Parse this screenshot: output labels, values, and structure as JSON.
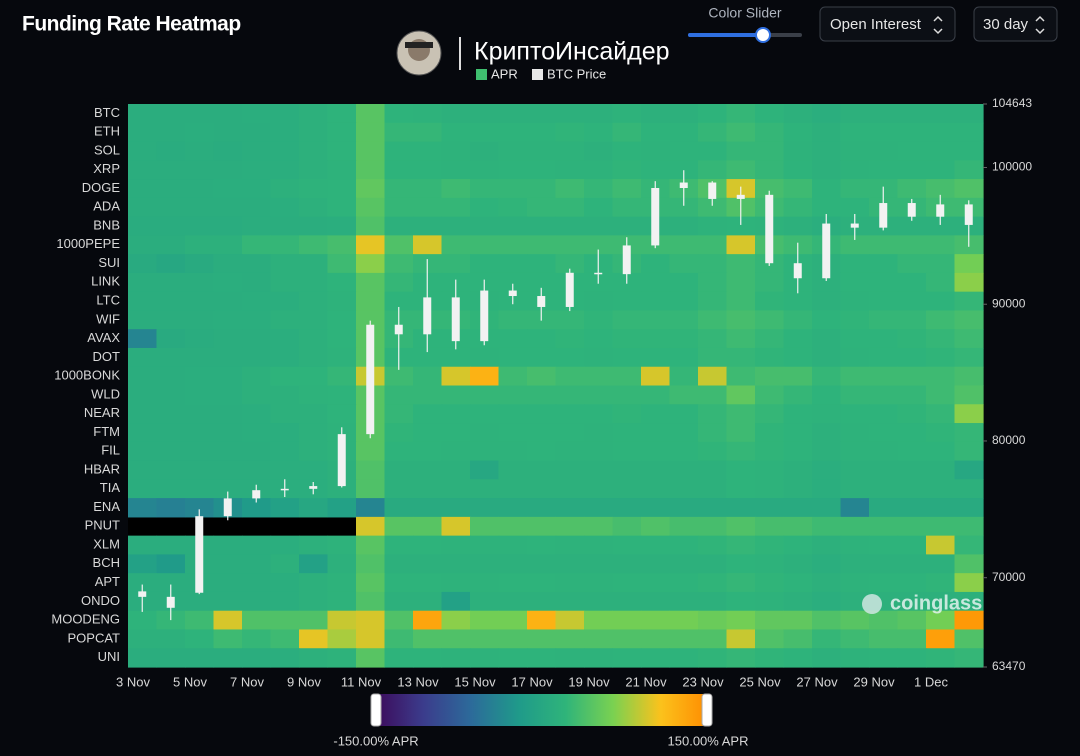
{
  "header": {
    "title": "Funding Rate Heatmap",
    "slider_label": "Color Slider",
    "metric": "Open Interest",
    "range": "30 day",
    "brand": "КриптоИнсайдер",
    "watermark": "coinglass"
  },
  "chart_data": {
    "type": "heatmap",
    "legend": [
      {
        "name": "APR",
        "color": "#3fbf6f"
      },
      {
        "name": "BTC Price",
        "color": "#e8e8e8"
      }
    ],
    "rows": [
      "BTC",
      "ETH",
      "SOL",
      "XRP",
      "DOGE",
      "ADA",
      "BNB",
      "1000PEPE",
      "SUI",
      "LINK",
      "LTC",
      "WIF",
      "AVAX",
      "DOT",
      "1000BONK",
      "WLD",
      "NEAR",
      "FTM",
      "FIL",
      "HBAR",
      "TIA",
      "ENA",
      "PNUT",
      "XLM",
      "BCH",
      "APT",
      "ONDO",
      "MOODENG",
      "POPCAT",
      "UNI"
    ],
    "categories": [
      "3 Nov",
      null,
      "5 Nov",
      null,
      "7 Nov",
      null,
      "9 Nov",
      null,
      "11 Nov",
      null,
      "13 Nov",
      null,
      "15 Nov",
      null,
      "17 Nov",
      null,
      "19 Nov",
      null,
      "21 Nov",
      null,
      "23 Nov",
      null,
      "25 Nov",
      null,
      "27 Nov",
      null,
      "29 Nov",
      null,
      "1 Dec",
      null
    ],
    "values": [
      [
        10,
        10,
        10,
        10,
        12,
        12,
        15,
        20,
        45,
        20,
        18,
        15,
        15,
        15,
        15,
        15,
        15,
        18,
        15,
        15,
        20,
        25,
        20,
        15,
        12,
        15,
        15,
        15,
        15,
        15
      ],
      [
        10,
        10,
        12,
        10,
        10,
        12,
        15,
        20,
        45,
        25,
        25,
        20,
        20,
        20,
        20,
        22,
        20,
        25,
        20,
        20,
        25,
        30,
        25,
        20,
        15,
        20,
        20,
        20,
        20,
        20
      ],
      [
        10,
        8,
        10,
        8,
        10,
        12,
        15,
        20,
        45,
        20,
        20,
        18,
        15,
        18,
        18,
        18,
        15,
        20,
        18,
        20,
        20,
        25,
        25,
        18,
        15,
        18,
        18,
        20,
        20,
        20
      ],
      [
        10,
        10,
        10,
        10,
        12,
        12,
        15,
        18,
        45,
        20,
        20,
        18,
        18,
        20,
        20,
        18,
        18,
        22,
        20,
        20,
        25,
        30,
        25,
        20,
        15,
        18,
        20,
        20,
        20,
        25
      ],
      [
        10,
        10,
        10,
        12,
        12,
        15,
        18,
        20,
        50,
        25,
        25,
        30,
        25,
        25,
        25,
        30,
        25,
        30,
        25,
        30,
        40,
        95,
        35,
        30,
        20,
        25,
        25,
        30,
        35,
        40
      ],
      [
        10,
        10,
        10,
        10,
        10,
        12,
        15,
        20,
        45,
        25,
        25,
        25,
        20,
        22,
        25,
        25,
        20,
        25,
        25,
        25,
        30,
        40,
        30,
        25,
        20,
        20,
        25,
        25,
        30,
        30
      ],
      [
        8,
        8,
        8,
        8,
        10,
        10,
        10,
        12,
        40,
        15,
        15,
        15,
        15,
        15,
        15,
        15,
        15,
        15,
        15,
        15,
        18,
        20,
        18,
        15,
        12,
        15,
        15,
        15,
        15,
        15
      ],
      [
        10,
        10,
        15,
        15,
        25,
        25,
        30,
        35,
        100,
        40,
        95,
        30,
        30,
        30,
        30,
        30,
        30,
        30,
        30,
        30,
        30,
        95,
        35,
        30,
        25,
        30,
        30,
        30,
        30,
        35
      ],
      [
        5,
        0,
        5,
        10,
        10,
        15,
        15,
        30,
        70,
        30,
        25,
        25,
        20,
        20,
        20,
        25,
        20,
        25,
        20,
        25,
        25,
        30,
        25,
        20,
        15,
        20,
        20,
        25,
        25,
        60
      ],
      [
        10,
        10,
        10,
        12,
        10,
        15,
        15,
        20,
        45,
        25,
        20,
        20,
        20,
        20,
        20,
        20,
        20,
        20,
        20,
        20,
        25,
        30,
        25,
        20,
        15,
        20,
        20,
        20,
        25,
        70
      ],
      [
        10,
        10,
        10,
        10,
        12,
        12,
        15,
        18,
        45,
        20,
        20,
        20,
        18,
        20,
        20,
        20,
        18,
        20,
        20,
        20,
        25,
        30,
        22,
        20,
        15,
        18,
        20,
        20,
        20,
        25
      ],
      [
        10,
        10,
        10,
        12,
        12,
        15,
        15,
        20,
        45,
        25,
        25,
        25,
        22,
        25,
        25,
        25,
        22,
        25,
        25,
        25,
        30,
        35,
        30,
        25,
        20,
        22,
        25,
        25,
        30,
        35
      ],
      [
        -40,
        5,
        8,
        10,
        10,
        12,
        15,
        20,
        45,
        25,
        20,
        20,
        20,
        20,
        20,
        22,
        20,
        22,
        22,
        22,
        25,
        30,
        25,
        20,
        15,
        20,
        20,
        22,
        25,
        30
      ],
      [
        10,
        10,
        10,
        10,
        10,
        12,
        15,
        18,
        45,
        20,
        20,
        20,
        18,
        20,
        20,
        20,
        18,
        20,
        20,
        20,
        25,
        25,
        22,
        20,
        15,
        18,
        20,
        20,
        22,
        25
      ],
      [
        10,
        10,
        12,
        12,
        15,
        20,
        20,
        25,
        90,
        30,
        25,
        95,
        120,
        30,
        35,
        30,
        30,
        30,
        95,
        25,
        90,
        30,
        35,
        35,
        25,
        30,
        30,
        30,
        30,
        35
      ],
      [
        10,
        10,
        12,
        12,
        15,
        15,
        18,
        20,
        45,
        25,
        25,
        25,
        25,
        25,
        25,
        25,
        25,
        25,
        25,
        30,
        30,
        50,
        30,
        25,
        20,
        25,
        25,
        25,
        30,
        40
      ],
      [
        10,
        10,
        10,
        10,
        12,
        15,
        15,
        20,
        45,
        25,
        20,
        20,
        20,
        20,
        20,
        20,
        20,
        22,
        20,
        20,
        25,
        30,
        25,
        20,
        18,
        20,
        20,
        22,
        25,
        70
      ],
      [
        10,
        10,
        10,
        10,
        12,
        12,
        15,
        18,
        45,
        22,
        20,
        20,
        18,
        20,
        20,
        20,
        18,
        20,
        20,
        20,
        25,
        30,
        22,
        20,
        15,
        18,
        20,
        20,
        22,
        25
      ],
      [
        10,
        10,
        10,
        10,
        10,
        12,
        15,
        18,
        45,
        20,
        20,
        18,
        18,
        18,
        20,
        18,
        18,
        20,
        20,
        20,
        22,
        25,
        22,
        20,
        15,
        18,
        18,
        20,
        20,
        25
      ],
      [
        10,
        10,
        10,
        10,
        10,
        12,
        12,
        15,
        40,
        15,
        15,
        15,
        0,
        15,
        15,
        15,
        15,
        15,
        15,
        15,
        15,
        20,
        18,
        15,
        12,
        15,
        15,
        15,
        15,
        0
      ],
      [
        10,
        10,
        10,
        10,
        10,
        12,
        12,
        15,
        40,
        15,
        15,
        15,
        15,
        15,
        15,
        15,
        15,
        15,
        15,
        15,
        15,
        20,
        18,
        15,
        12,
        15,
        15,
        15,
        15,
        15
      ],
      [
        -40,
        -45,
        -40,
        -30,
        -20,
        -10,
        0,
        -10,
        -40,
        5,
        5,
        5,
        5,
        5,
        5,
        5,
        5,
        5,
        5,
        5,
        5,
        5,
        5,
        5,
        5,
        -40,
        5,
        5,
        5,
        5
      ],
      [
        null,
        null,
        null,
        null,
        null,
        null,
        null,
        null,
        95,
        45,
        45,
        95,
        40,
        40,
        40,
        40,
        40,
        35,
        40,
        35,
        35,
        40,
        35,
        35,
        30,
        30,
        30,
        30,
        30,
        30
      ],
      [
        10,
        10,
        10,
        10,
        10,
        12,
        15,
        18,
        45,
        20,
        20,
        18,
        18,
        18,
        20,
        18,
        18,
        20,
        20,
        20,
        22,
        25,
        22,
        20,
        15,
        18,
        20,
        20,
        90,
        25
      ],
      [
        -10,
        -20,
        10,
        10,
        10,
        15,
        -10,
        15,
        40,
        15,
        15,
        15,
        15,
        15,
        15,
        15,
        15,
        15,
        15,
        15,
        15,
        20,
        18,
        15,
        12,
        15,
        15,
        15,
        15,
        40
      ],
      [
        10,
        10,
        10,
        10,
        10,
        12,
        15,
        18,
        45,
        20,
        20,
        18,
        18,
        20,
        20,
        18,
        18,
        20,
        20,
        20,
        22,
        25,
        22,
        20,
        15,
        18,
        20,
        20,
        22,
        70
      ],
      [
        10,
        10,
        10,
        10,
        10,
        12,
        15,
        18,
        40,
        15,
        15,
        -10,
        15,
        15,
        15,
        15,
        15,
        15,
        15,
        15,
        15,
        20,
        18,
        15,
        12,
        15,
        15,
        15,
        15,
        15
      ],
      [
        20,
        25,
        30,
        95,
        40,
        40,
        40,
        90,
        95,
        40,
        130,
        70,
        60,
        60,
        120,
        90,
        60,
        60,
        60,
        60,
        55,
        60,
        50,
        50,
        40,
        45,
        40,
        45,
        60,
        140
      ],
      [
        15,
        15,
        20,
        30,
        25,
        30,
        100,
        80,
        95,
        30,
        40,
        40,
        40,
        40,
        40,
        40,
        40,
        40,
        40,
        40,
        40,
        90,
        40,
        35,
        25,
        30,
        35,
        35,
        135,
        40
      ],
      [
        10,
        10,
        10,
        10,
        10,
        12,
        15,
        18,
        45,
        20,
        20,
        18,
        18,
        20,
        20,
        18,
        18,
        20,
        20,
        20,
        22,
        25,
        22,
        20,
        15,
        18,
        20,
        20,
        22,
        25
      ]
    ],
    "zlim": [
      -150,
      150
    ],
    "zticks": [
      {
        "value": -150,
        "label": "-150.00% APR"
      },
      {
        "value": 150,
        "label": "150.00% APR"
      }
    ],
    "colorscale": [
      "#3d0b5b",
      "#3b3c8c",
      "#2c6a9a",
      "#1f9a8a",
      "#2fb47a",
      "#7ad151",
      "#fbc21c",
      "#ff8c00"
    ],
    "null_color": "#000000",
    "price": {
      "name": "BTC Price",
      "color": "#f2f2f2",
      "open": [
        69000,
        68600,
        68900,
        74500,
        75800,
        76400,
        76500,
        76700,
        80500,
        88500,
        87800,
        90500,
        87300,
        91000,
        90600,
        89800,
        92300,
        92200,
        94300,
        98500,
        98900,
        97700,
        98000,
        93000,
        91900,
        95900,
        95600,
        97400,
        96400,
        97300
      ],
      "high": [
        69500,
        69500,
        75000,
        76300,
        76800,
        77200,
        77000,
        81000,
        88800,
        89800,
        93300,
        91800,
        91800,
        91500,
        91200,
        92600,
        94000,
        94900,
        99000,
        99800,
        99000,
        98600,
        98300,
        94500,
        96600,
        96600,
        98600,
        97700,
        98000,
        97600
      ],
      "low": [
        67500,
        66900,
        68800,
        74200,
        75500,
        75900,
        76100,
        76600,
        80200,
        85200,
        86500,
        86700,
        87000,
        90000,
        88800,
        89500,
        91500,
        91500,
        94100,
        97200,
        97200,
        95800,
        92800,
        90800,
        91700,
        94700,
        95400,
        96100,
        95800,
        94200
      ],
      "close": [
        68600,
        67800,
        74500,
        75800,
        76400,
        76500,
        76700,
        80500,
        88500,
        87800,
        90500,
        87300,
        91000,
        90600,
        89800,
        92300,
        92200,
        94300,
        98500,
        98900,
        97700,
        98000,
        93000,
        91900,
        95900,
        95600,
        97400,
        96400,
        97300,
        95800
      ]
    },
    "ylim": [
      63470,
      104643
    ],
    "yticks": [
      63470,
      70000,
      80000,
      90000,
      100000,
      104643
    ]
  }
}
